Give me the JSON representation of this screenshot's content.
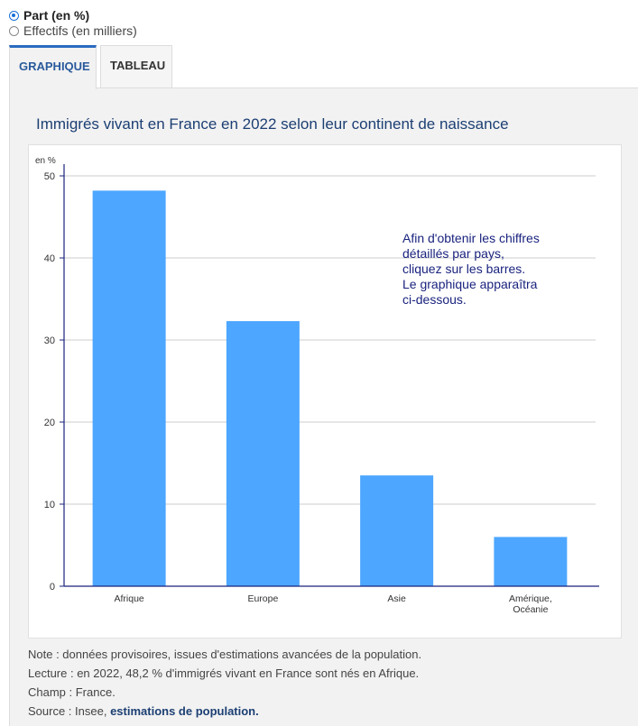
{
  "controls": {
    "radio_part": "Part (en %)",
    "radio_effectifs": "Effectifs (en milliers)"
  },
  "tabs": [
    {
      "label": "GRAPHIQUE",
      "active": true
    },
    {
      "label": "TABLEAU",
      "active": false
    }
  ],
  "colors": {
    "bar": "#4da6ff",
    "title": "#1c3f73",
    "axis": "#1a237e"
  },
  "chart_data": {
    "type": "bar",
    "title": "Immigrés vivant en France en 2022 selon leur continent de naissance",
    "ylabel": "en %",
    "xlabel": "",
    "ylim": [
      0,
      50
    ],
    "yticks": [
      0,
      10,
      20,
      30,
      40,
      50
    ],
    "grid": true,
    "categories": [
      [
        "Afrique"
      ],
      [
        "Europe"
      ],
      [
        "Asie"
      ],
      [
        "Amérique,",
        "Océanie"
      ]
    ],
    "values": [
      48.2,
      32.3,
      13.5,
      6.0
    ],
    "annotation": [
      "Afin d'obtenir les chiffres",
      "détaillés par pays,",
      "cliquez sur les barres.",
      "Le graphique apparaîtra",
      "ci-dessous."
    ]
  },
  "notes": {
    "note": "Note : données provisoires, issues d'estimations avancées de la population.",
    "lecture": "Lecture : en 2022, 48,2 % d'immigrés vivant en France sont nés en Afrique.",
    "champ": "Champ : France.",
    "source_prefix": "Source : Insee, ",
    "source_link": "estimations de population."
  }
}
